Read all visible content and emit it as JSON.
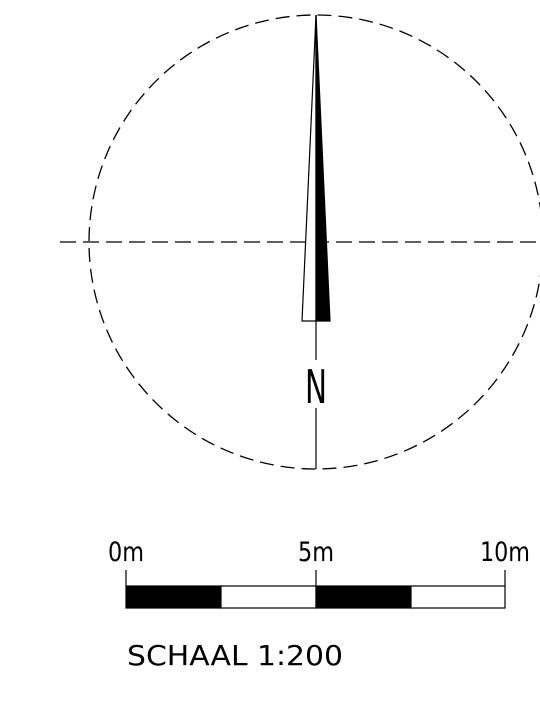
{
  "north_arrow": {
    "label": "N"
  },
  "scale_bar": {
    "tick_labels": [
      "0m",
      "5m",
      "10m"
    ],
    "segments": [
      "filled",
      "empty",
      "filled",
      "empty"
    ],
    "caption": "SCHAAL 1:200"
  },
  "colors": {
    "ink": "#000000",
    "paper": "#ffffff"
  }
}
